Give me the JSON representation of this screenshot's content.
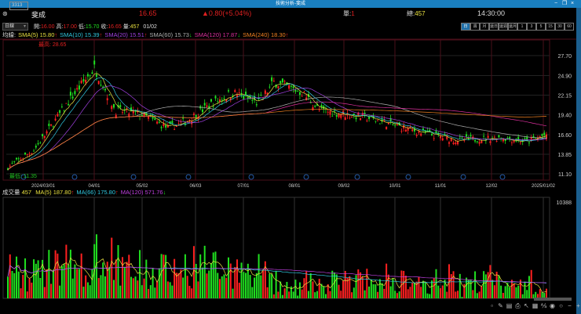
{
  "window": {
    "title": "技術分析-斐成",
    "minimize": "−",
    "restore": "❐",
    "close": "×"
  },
  "header": {
    "code": "3313",
    "name": "斐成",
    "price": "16.65",
    "change": "▲0.80(+5.04%)",
    "unit_label": "單:",
    "unit_value": "1",
    "total_label": "總:",
    "total_value": "457",
    "time": "14:30:00"
  },
  "quote": {
    "period": "日線",
    "open_label": "開:",
    "open": "16.00",
    "high_label": "高:",
    "high": "17.00",
    "low_label": "低:",
    "low": "15.70",
    "close_label": "收:",
    "close": "16.65",
    "vol_label": "量:",
    "vol": "457",
    "date": "01/02"
  },
  "periods": [
    {
      "label": "日",
      "active": true
    },
    {
      "label": "週"
    },
    {
      "label": "月"
    },
    {
      "label": "還日"
    },
    {
      "label": "還週"
    },
    {
      "label": "還月"
    },
    {
      "label": "1"
    },
    {
      "label": "3"
    },
    {
      "label": "5"
    },
    {
      "label": "15"
    },
    {
      "label": "30"
    },
    {
      "label": "60"
    }
  ],
  "price_legend": {
    "prefix": "均線:",
    "items": [
      {
        "text": "SMA(5) 15.80",
        "arrow": "↑",
        "color": "#e8e040"
      },
      {
        "text": "SMA(10) 15.39",
        "arrow": "↑",
        "color": "#30c8e0"
      },
      {
        "text": "SMA(20) 15.51",
        "arrow": "↑",
        "color": "#a040e0"
      },
      {
        "text": "SMA(60) 15.73",
        "arrow": "↓",
        "color": "#b0b0b0"
      },
      {
        "text": "SMA(120) 17.87",
        "arrow": "↓",
        "color": "#e030a0"
      },
      {
        "text": "SMA(240) 18.30",
        "arrow": "↑",
        "color": "#f08020"
      }
    ]
  },
  "high_mark": "最高: 28.65",
  "low_mark": "最低: 11.35",
  "volume_legend": {
    "prefix": "成交量",
    "value": "457",
    "items": [
      {
        "text": "MA(5) 187.80",
        "arrow": "↑",
        "color": "#e8e040"
      },
      {
        "text": "MA(66) 175.80",
        "arrow": "↑",
        "color": "#30c8e0"
      },
      {
        "text": "MA(120) 571.76",
        "arrow": "↓",
        "color": "#c040e0"
      }
    ]
  },
  "colors": {
    "up": "#ff2020",
    "down": "#20e020",
    "grid": "#4a0f1a"
  },
  "toolbar": [
    "page-icon",
    "draw-icon",
    "list-icon",
    "print-icon",
    "cursor-icon",
    "grid-icon",
    "indicator-icon",
    "eye-icon",
    "refresh-icon",
    "zoom-out-icon",
    "zoom-in-icon"
  ],
  "chart_data": {
    "type": "candlestick",
    "y_ticks": [
      "27.70",
      "24.90",
      "22.15",
      "19.40",
      "16.60",
      "13.85",
      "11.10"
    ],
    "ylim": [
      11.1,
      27.7
    ],
    "x_ticks": [
      "2024/03/01",
      "04/01",
      "05/02",
      "06/03",
      "07/01",
      "08/01",
      "09/02",
      "10/01",
      "11/01",
      "12/02",
      "2025/01/02"
    ],
    "close_anchors": [
      {
        "date": "2024/01/02",
        "close": 12.0
      },
      {
        "date": "2024/01/20",
        "close": 14.5
      },
      {
        "date": "2024/02/15",
        "close": 22.0
      },
      {
        "date": "2024/03/01",
        "close": 26.0
      },
      {
        "date": "2024/03/15",
        "close": 20.0
      },
      {
        "date": "2024/04/01",
        "close": 19.5
      },
      {
        "date": "2024/04/20",
        "close": 17.5
      },
      {
        "date": "2024/05/02",
        "close": 18.5
      },
      {
        "date": "2024/05/20",
        "close": 21.0
      },
      {
        "date": "2024/06/03",
        "close": 22.5
      },
      {
        "date": "2024/06/20",
        "close": 21.0
      },
      {
        "date": "2024/07/01",
        "close": 24.0
      },
      {
        "date": "2024/07/20",
        "close": 22.5
      },
      {
        "date": "2024/08/01",
        "close": 20.0
      },
      {
        "date": "2024/09/02",
        "close": 19.0
      },
      {
        "date": "2024/10/01",
        "close": 17.3
      },
      {
        "date": "2024/11/01",
        "close": 15.8
      },
      {
        "date": "2024/12/02",
        "close": 16.2
      },
      {
        "date": "2024/12/20",
        "close": 15.6
      },
      {
        "date": "2025/01/02",
        "close": 16.65
      }
    ],
    "volume_ymax": "10388"
  }
}
